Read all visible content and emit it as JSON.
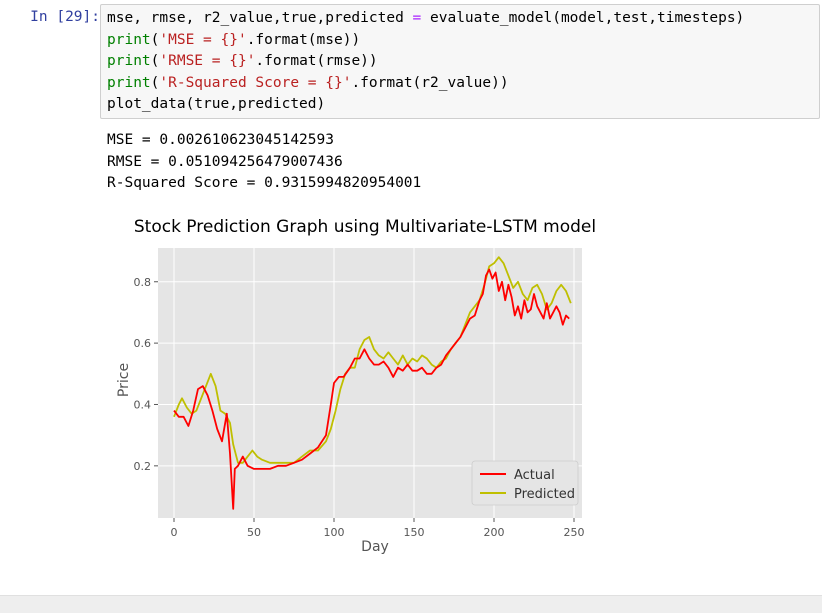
{
  "cell": {
    "prompt": "In [29]:",
    "code": {
      "line1": {
        "part1": "mse, rmse, r2_value,true,predicted ",
        "op": "=",
        "part2": " evaluate_model(model,test,timesteps)"
      },
      "line2": {
        "fn": "print",
        "p1": "(",
        "str": "'MSE = {}'",
        "p2": ".format(mse))"
      },
      "line3": {
        "fn": "print",
        "p1": "(",
        "str": "'RMSE = {}'",
        "p2": ".format(rmse))"
      },
      "line4": {
        "fn": "print",
        "p1": "(",
        "str": "'R-Squared Score = {}'",
        "p2": ".format(r2_value))"
      },
      "line5": "plot_data(true,predicted)"
    },
    "output": {
      "mse_line": "MSE = 0.002610623045142593",
      "rmse_line": "RMSE = 0.051094256479007436",
      "r2_line": "R-Squared Score = 0.9315994820954001"
    }
  },
  "colors": {
    "prompt": "#303f9f",
    "actual": "#ff0000",
    "predicted": "#bfbf00",
    "plot_background": "#e5e5e5",
    "grid": "#ffffff"
  },
  "chart_data": {
    "type": "line",
    "title": "Stock Prediction Graph using Multivariate-LSTM model",
    "xlabel": "Day",
    "ylabel": "Price",
    "xlim": [
      -10,
      255
    ],
    "ylim": [
      0.03,
      0.91
    ],
    "xticks": [
      0,
      50,
      100,
      150,
      200,
      250
    ],
    "yticks": [
      0.2,
      0.4,
      0.6,
      0.8
    ],
    "grid": true,
    "legend_position": "lower-right",
    "series": [
      {
        "name": "Actual",
        "points": [
          [
            0,
            0.38
          ],
          [
            3,
            0.36
          ],
          [
            6,
            0.36
          ],
          [
            9,
            0.33
          ],
          [
            12,
            0.38
          ],
          [
            15,
            0.45
          ],
          [
            18,
            0.46
          ],
          [
            21,
            0.43
          ],
          [
            24,
            0.38
          ],
          [
            27,
            0.32
          ],
          [
            30,
            0.28
          ],
          [
            33,
            0.37
          ],
          [
            35,
            0.24
          ],
          [
            37,
            0.06
          ],
          [
            38,
            0.19
          ],
          [
            40,
            0.2
          ],
          [
            43,
            0.23
          ],
          [
            46,
            0.2
          ],
          [
            50,
            0.19
          ],
          [
            55,
            0.19
          ],
          [
            60,
            0.19
          ],
          [
            65,
            0.2
          ],
          [
            70,
            0.2
          ],
          [
            75,
            0.21
          ],
          [
            80,
            0.22
          ],
          [
            85,
            0.24
          ],
          [
            90,
            0.26
          ],
          [
            95,
            0.3
          ],
          [
            98,
            0.4
          ],
          [
            100,
            0.47
          ],
          [
            103,
            0.49
          ],
          [
            106,
            0.49
          ],
          [
            110,
            0.52
          ],
          [
            113,
            0.55
          ],
          [
            116,
            0.55
          ],
          [
            119,
            0.58
          ],
          [
            122,
            0.55
          ],
          [
            125,
            0.53
          ],
          [
            128,
            0.53
          ],
          [
            131,
            0.54
          ],
          [
            134,
            0.52
          ],
          [
            137,
            0.49
          ],
          [
            140,
            0.52
          ],
          [
            143,
            0.51
          ],
          [
            146,
            0.53
          ],
          [
            149,
            0.51
          ],
          [
            152,
            0.51
          ],
          [
            155,
            0.52
          ],
          [
            158,
            0.5
          ],
          [
            161,
            0.5
          ],
          [
            164,
            0.52
          ],
          [
            167,
            0.53
          ],
          [
            170,
            0.56
          ],
          [
            173,
            0.58
          ],
          [
            176,
            0.6
          ],
          [
            179,
            0.62
          ],
          [
            182,
            0.65
          ],
          [
            185,
            0.68
          ],
          [
            188,
            0.69
          ],
          [
            191,
            0.74
          ],
          [
            193,
            0.76
          ],
          [
            195,
            0.82
          ],
          [
            197,
            0.84
          ],
          [
            199,
            0.81
          ],
          [
            201,
            0.83
          ],
          [
            203,
            0.77
          ],
          [
            205,
            0.8
          ],
          [
            207,
            0.74
          ],
          [
            209,
            0.79
          ],
          [
            211,
            0.75
          ],
          [
            213,
            0.69
          ],
          [
            215,
            0.72
          ],
          [
            217,
            0.68
          ],
          [
            219,
            0.74
          ],
          [
            221,
            0.7
          ],
          [
            223,
            0.71
          ],
          [
            225,
            0.76
          ],
          [
            227,
            0.72
          ],
          [
            229,
            0.7
          ],
          [
            231,
            0.68
          ],
          [
            233,
            0.73
          ],
          [
            235,
            0.68
          ],
          [
            237,
            0.7
          ],
          [
            239,
            0.72
          ],
          [
            241,
            0.7
          ],
          [
            243,
            0.66
          ],
          [
            245,
            0.69
          ],
          [
            247,
            0.68
          ]
        ]
      },
      {
        "name": "Predicted",
        "points": [
          [
            0,
            0.36
          ],
          [
            3,
            0.4
          ],
          [
            5,
            0.42
          ],
          [
            8,
            0.39
          ],
          [
            11,
            0.37
          ],
          [
            14,
            0.38
          ],
          [
            17,
            0.42
          ],
          [
            20,
            0.46
          ],
          [
            23,
            0.5
          ],
          [
            26,
            0.46
          ],
          [
            29,
            0.38
          ],
          [
            32,
            0.37
          ],
          [
            35,
            0.34
          ],
          [
            37,
            0.27
          ],
          [
            40,
            0.21
          ],
          [
            43,
            0.21
          ],
          [
            46,
            0.23
          ],
          [
            49,
            0.25
          ],
          [
            52,
            0.23
          ],
          [
            55,
            0.22
          ],
          [
            60,
            0.21
          ],
          [
            65,
            0.21
          ],
          [
            70,
            0.21
          ],
          [
            75,
            0.21
          ],
          [
            80,
            0.23
          ],
          [
            85,
            0.25
          ],
          [
            90,
            0.25
          ],
          [
            95,
            0.28
          ],
          [
            98,
            0.32
          ],
          [
            101,
            0.38
          ],
          [
            104,
            0.45
          ],
          [
            107,
            0.5
          ],
          [
            110,
            0.52
          ],
          [
            113,
            0.52
          ],
          [
            116,
            0.58
          ],
          [
            119,
            0.61
          ],
          [
            122,
            0.62
          ],
          [
            125,
            0.58
          ],
          [
            128,
            0.56
          ],
          [
            131,
            0.55
          ],
          [
            134,
            0.57
          ],
          [
            137,
            0.55
          ],
          [
            140,
            0.53
          ],
          [
            143,
            0.56
          ],
          [
            146,
            0.53
          ],
          [
            149,
            0.55
          ],
          [
            152,
            0.54
          ],
          [
            155,
            0.56
          ],
          [
            158,
            0.55
          ],
          [
            161,
            0.53
          ],
          [
            164,
            0.52
          ],
          [
            167,
            0.54
          ],
          [
            170,
            0.55
          ],
          [
            173,
            0.58
          ],
          [
            176,
            0.6
          ],
          [
            179,
            0.62
          ],
          [
            182,
            0.66
          ],
          [
            185,
            0.7
          ],
          [
            188,
            0.72
          ],
          [
            191,
            0.74
          ],
          [
            194,
            0.79
          ],
          [
            197,
            0.85
          ],
          [
            200,
            0.86
          ],
          [
            203,
            0.88
          ],
          [
            206,
            0.86
          ],
          [
            209,
            0.82
          ],
          [
            212,
            0.78
          ],
          [
            215,
            0.8
          ],
          [
            218,
            0.76
          ],
          [
            221,
            0.74
          ],
          [
            224,
            0.78
          ],
          [
            227,
            0.79
          ],
          [
            230,
            0.76
          ],
          [
            233,
            0.71
          ],
          [
            236,
            0.73
          ],
          [
            239,
            0.77
          ],
          [
            242,
            0.79
          ],
          [
            245,
            0.77
          ],
          [
            248,
            0.73
          ]
        ]
      }
    ]
  }
}
